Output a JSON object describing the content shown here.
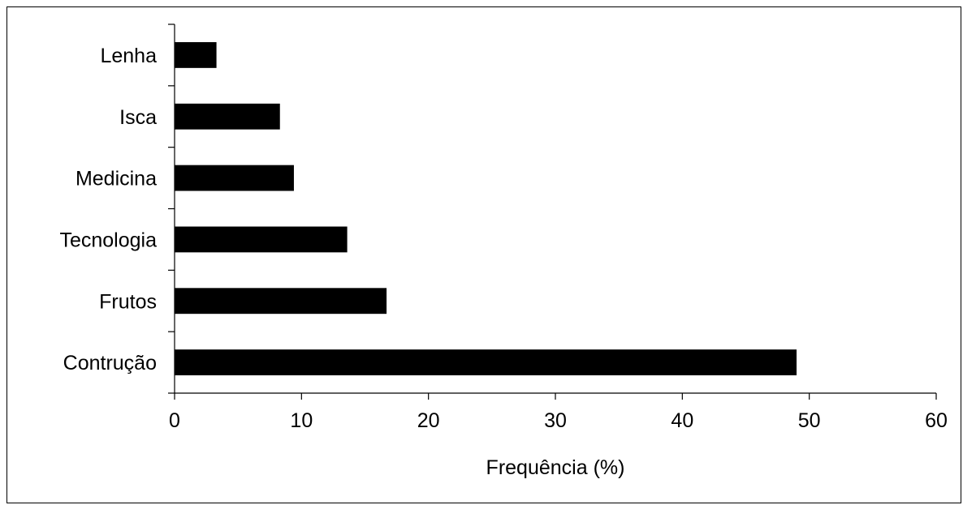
{
  "chart_data": {
    "type": "bar",
    "orientation": "horizontal",
    "categories": [
      "Lenha",
      "Isca",
      "Medicina",
      "Tecnologia",
      "Frutos",
      "Contrução"
    ],
    "values": [
      3.3,
      8.3,
      9.4,
      13.6,
      16.7,
      49.0
    ],
    "xlabel": "Frequência (%)",
    "ylabel": "",
    "xlim": [
      0,
      60
    ],
    "xticks": [
      "0",
      "10",
      "20",
      "30",
      "40",
      "50",
      "60"
    ],
    "grid": false,
    "bar_color": "#000000"
  }
}
